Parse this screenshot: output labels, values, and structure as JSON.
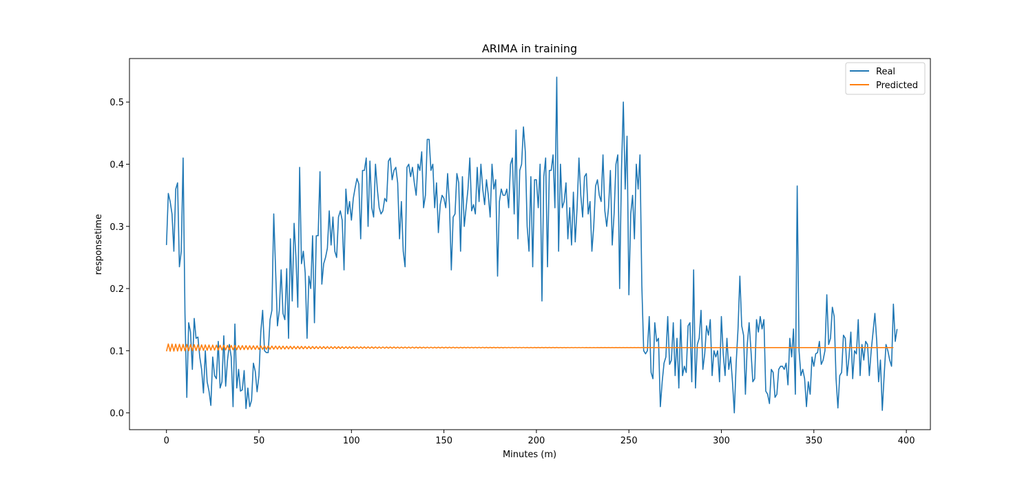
{
  "chart_data": {
    "type": "line",
    "title": "ARIMA in training",
    "xlabel": "Minutes (m)",
    "ylabel": "responsetime",
    "xlim": [
      -20,
      413
    ],
    "ylim": [
      -0.027,
      0.57
    ],
    "xticks": [
      0,
      50,
      100,
      150,
      200,
      250,
      300,
      350,
      400
    ],
    "yticks": [
      0.0,
      0.1,
      0.2,
      0.3,
      0.4,
      0.5
    ],
    "ytick_labels": [
      "0.0",
      "0.1",
      "0.2",
      "0.3",
      "0.4",
      "0.5"
    ],
    "grid": false,
    "legend_position": "top-right",
    "series": [
      {
        "name": "Real",
        "color": "#1f77b4",
        "x_start": 0,
        "values": [
          0.27,
          0.353,
          0.34,
          0.32,
          0.26,
          0.36,
          0.37,
          0.235,
          0.26,
          0.41,
          0.16,
          0.025,
          0.145,
          0.13,
          0.07,
          0.152,
          0.12,
          0.122,
          0.09,
          0.07,
          0.032,
          0.1,
          0.05,
          0.035,
          0.012,
          0.09,
          0.06,
          0.055,
          0.115,
          0.04,
          0.05,
          0.124,
          0.043,
          0.085,
          0.11,
          0.09,
          0.01,
          0.143,
          0.04,
          0.07,
          0.035,
          0.037,
          0.068,
          0.007,
          0.04,
          0.01,
          0.02,
          0.08,
          0.067,
          0.034,
          0.06,
          0.13,
          0.165,
          0.1,
          0.097,
          0.097,
          0.15,
          0.165,
          0.32,
          0.23,
          0.14,
          0.165,
          0.23,
          0.16,
          0.15,
          0.232,
          0.12,
          0.28,
          0.18,
          0.305,
          0.25,
          0.17,
          0.395,
          0.24,
          0.26,
          0.225,
          0.12,
          0.22,
          0.2,
          0.285,
          0.145,
          0.285,
          0.285,
          0.388,
          0.207,
          0.24,
          0.25,
          0.265,
          0.325,
          0.27,
          0.315,
          0.26,
          0.25,
          0.315,
          0.325,
          0.31,
          0.23,
          0.36,
          0.32,
          0.34,
          0.31,
          0.345,
          0.362,
          0.377,
          0.368,
          0.28,
          0.39,
          0.39,
          0.41,
          0.3,
          0.405,
          0.33,
          0.315,
          0.4,
          0.36,
          0.33,
          0.32,
          0.325,
          0.345,
          0.34,
          0.405,
          0.41,
          0.375,
          0.39,
          0.395,
          0.37,
          0.28,
          0.34,
          0.26,
          0.235,
          0.395,
          0.4,
          0.38,
          0.395,
          0.37,
          0.35,
          0.4,
          0.39,
          0.42,
          0.33,
          0.35,
          0.44,
          0.44,
          0.39,
          0.4,
          0.33,
          0.37,
          0.29,
          0.335,
          0.35,
          0.345,
          0.33,
          0.385,
          0.335,
          0.23,
          0.315,
          0.32,
          0.385,
          0.37,
          0.26,
          0.38,
          0.3,
          0.33,
          0.36,
          0.41,
          0.325,
          0.335,
          0.32,
          0.395,
          0.34,
          0.4,
          0.36,
          0.335,
          0.375,
          0.35,
          0.315,
          0.4,
          0.36,
          0.375,
          0.22,
          0.34,
          0.36,
          0.35,
          0.35,
          0.36,
          0.33,
          0.4,
          0.41,
          0.32,
          0.455,
          0.28,
          0.39,
          0.4,
          0.46,
          0.42,
          0.3,
          0.26,
          0.38,
          0.235,
          0.375,
          0.375,
          0.33,
          0.4,
          0.18,
          0.38,
          0.41,
          0.235,
          0.39,
          0.39,
          0.415,
          0.33,
          0.54,
          0.26,
          0.4,
          0.33,
          0.34,
          0.37,
          0.28,
          0.33,
          0.27,
          0.355,
          0.275,
          0.33,
          0.41,
          0.35,
          0.315,
          0.38,
          0.385,
          0.32,
          0.34,
          0.26,
          0.3,
          0.365,
          0.375,
          0.35,
          0.34,
          0.415,
          0.325,
          0.3,
          0.33,
          0.39,
          0.27,
          0.32,
          0.4,
          0.415,
          0.2,
          0.39,
          0.5,
          0.36,
          0.445,
          0.19,
          0.32,
          0.35,
          0.28,
          0.4,
          0.36,
          0.415,
          0.205,
          0.1,
          0.095,
          0.1,
          0.155,
          0.065,
          0.055,
          0.145,
          0.115,
          0.12,
          0.01,
          0.05,
          0.08,
          0.09,
          0.155,
          0.078,
          0.085,
          0.145,
          0.06,
          0.12,
          0.04,
          0.15,
          0.06,
          0.075,
          0.065,
          0.14,
          0.145,
          0.05,
          0.23,
          0.04,
          0.11,
          0.12,
          0.165,
          0.07,
          0.095,
          0.14,
          0.125,
          0.15,
          0.06,
          0.1,
          0.09,
          0.1,
          0.05,
          0.155,
          0.095,
          0.06,
          0.12,
          0.07,
          0.09,
          0.05,
          0.0,
          0.08,
          0.135,
          0.22,
          0.14,
          0.125,
          0.03,
          0.11,
          0.145,
          0.1,
          0.05,
          0.055,
          0.15,
          0.13,
          0.155,
          0.135,
          0.15,
          0.035,
          0.03,
          0.015,
          0.07,
          0.065,
          0.025,
          0.03,
          0.07,
          0.075,
          0.075,
          0.07,
          0.08,
          0.045,
          0.12,
          0.09,
          0.135,
          0.03,
          0.365,
          0.1,
          0.06,
          0.07,
          0.055,
          0.01,
          0.05,
          0.03,
          0.09,
          0.075,
          0.095,
          0.097,
          0.115,
          0.078,
          0.085,
          0.1,
          0.19,
          0.11,
          0.12,
          0.17,
          0.155,
          0.055,
          0.008,
          0.06,
          0.065,
          0.125,
          0.12,
          0.06,
          0.09,
          0.13,
          0.055,
          0.1,
          0.095,
          0.15,
          0.06,
          0.11,
          0.085,
          0.115,
          0.11,
          0.06,
          0.1,
          0.13,
          0.16,
          0.115,
          0.05,
          0.085,
          0.004,
          0.06,
          0.11,
          0.1,
          0.085,
          0.075,
          0.175,
          0.115,
          0.135
        ]
      },
      {
        "name": "Predicted",
        "color": "#ff7f0e",
        "x_start": 0,
        "note_shape": "damped alternation around 0.105",
        "center": 0.105,
        "initial_amplitude": 0.006,
        "decay": 0.985,
        "length": 394
      }
    ]
  }
}
